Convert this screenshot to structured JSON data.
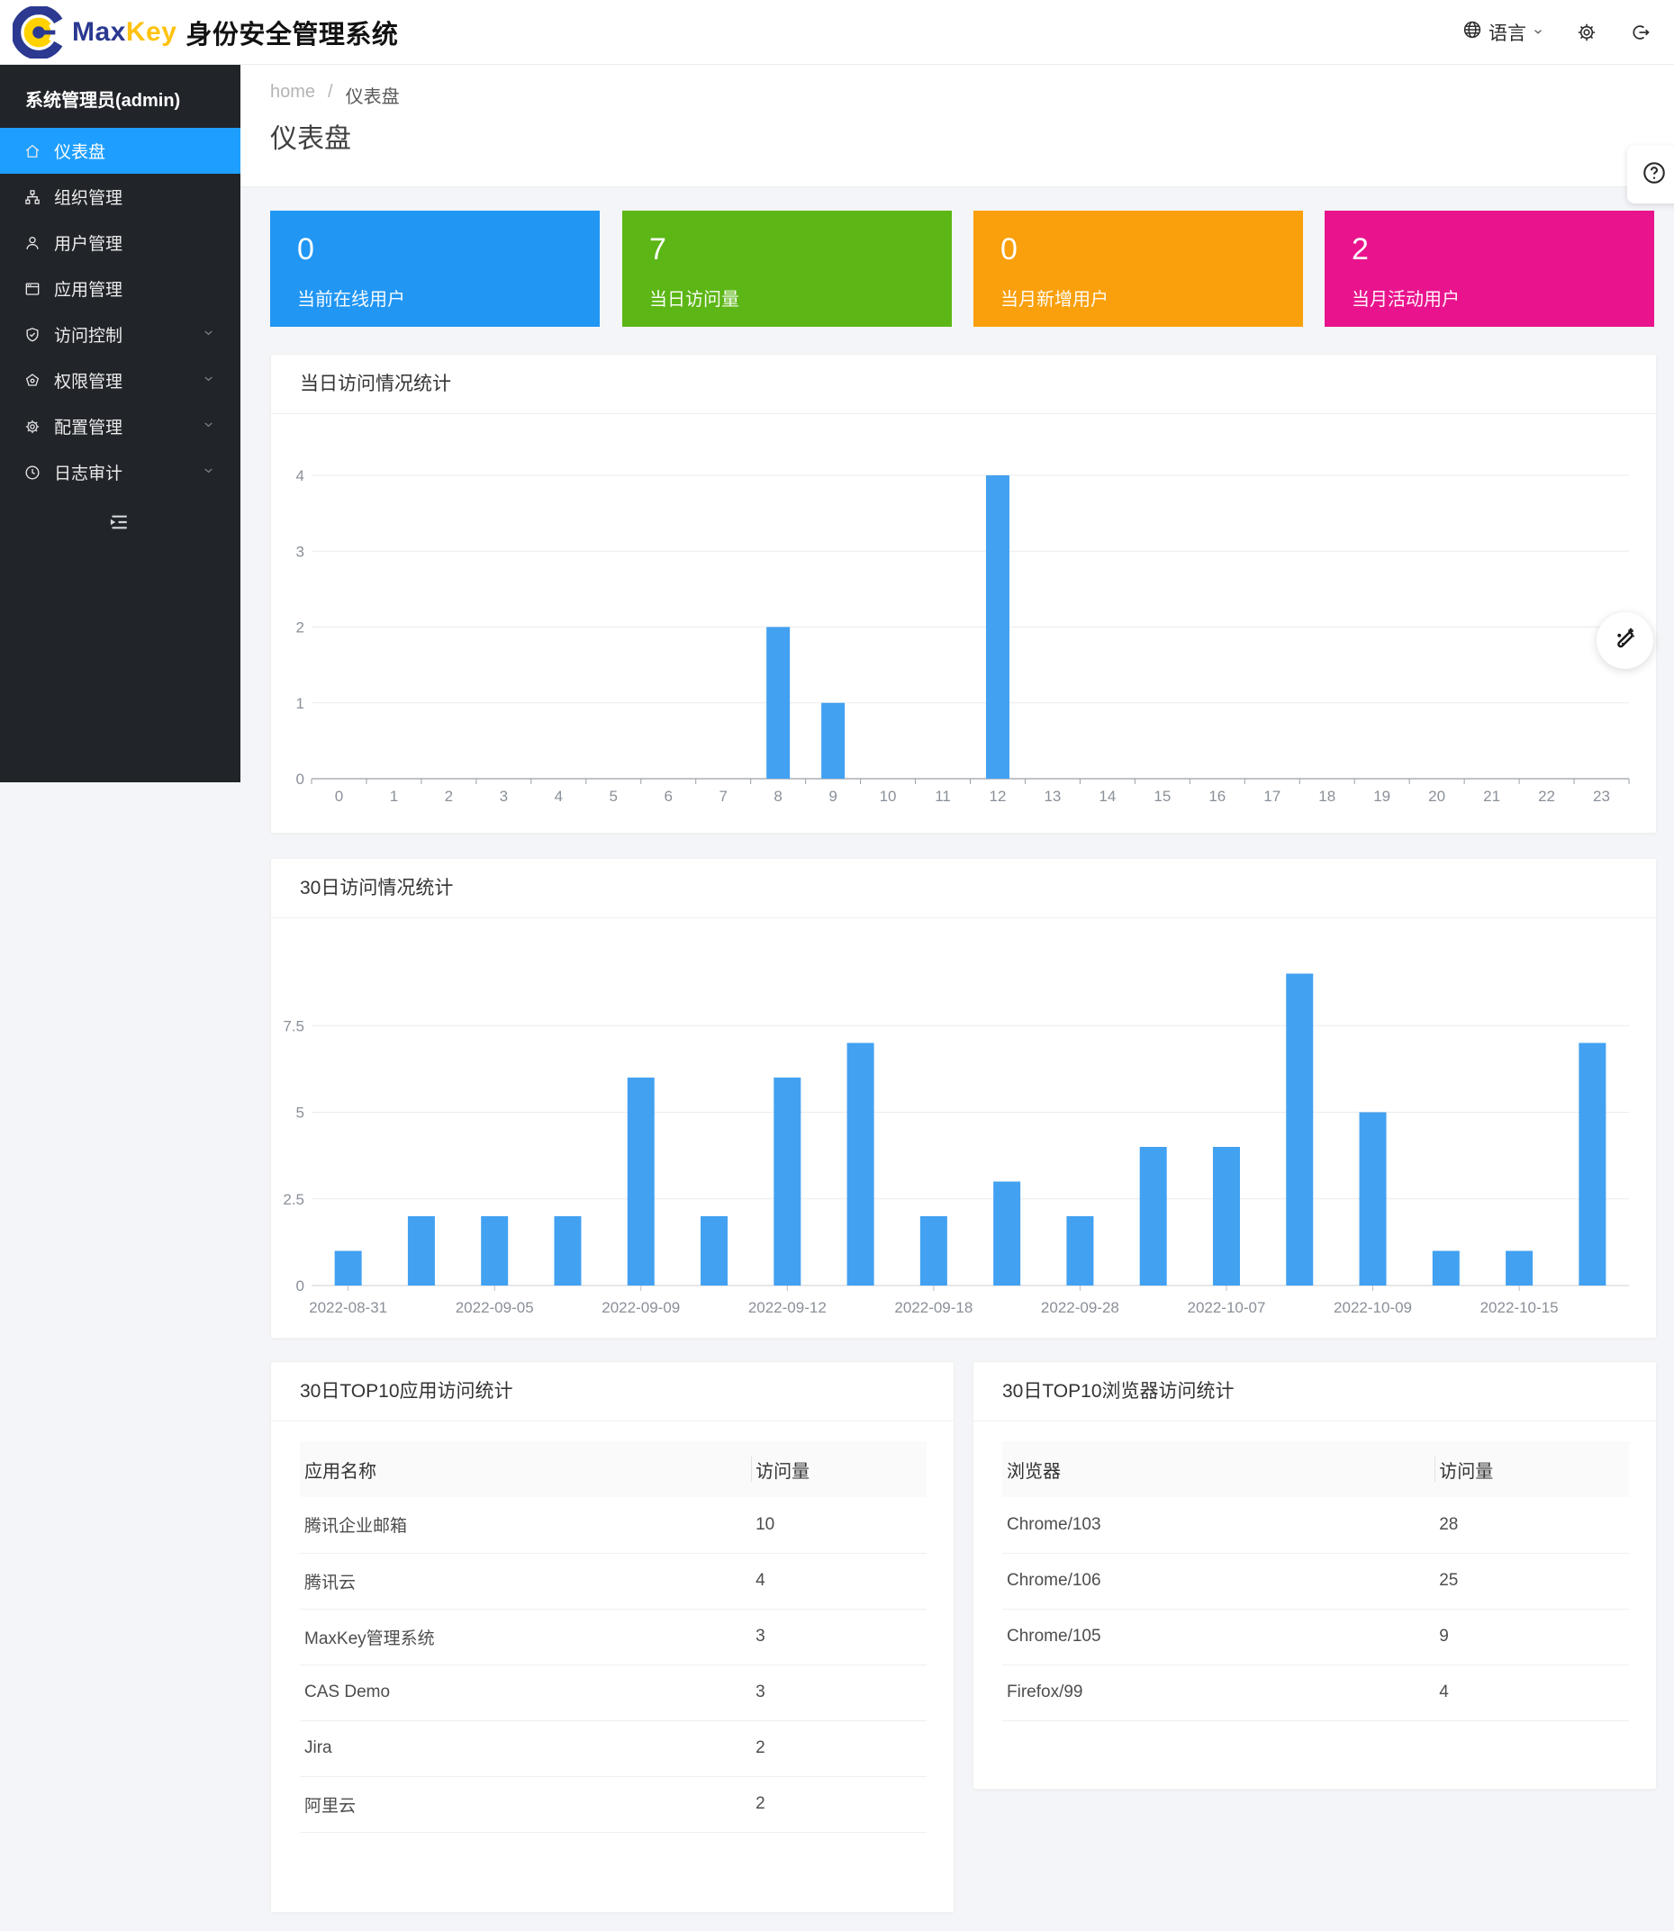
{
  "header": {
    "brand_max": "Max",
    "brand_key": "Key",
    "brand_suffix": "身份安全管理系统",
    "language_label": "语言"
  },
  "sidebar": {
    "admin_label": "系统管理员(admin)",
    "active_color": "#1E9FFF",
    "items": [
      {
        "name": "dashboard",
        "label": "仪表盘",
        "icon": "home-icon",
        "active": true,
        "expandable": false
      },
      {
        "name": "organization",
        "label": "组织管理",
        "icon": "org-icon",
        "active": false,
        "expandable": false
      },
      {
        "name": "users",
        "label": "用户管理",
        "icon": "user-icon",
        "active": false,
        "expandable": false
      },
      {
        "name": "apps",
        "label": "应用管理",
        "icon": "app-icon",
        "active": false,
        "expandable": false
      },
      {
        "name": "access-control",
        "label": "访问控制",
        "icon": "shield-check-icon",
        "active": false,
        "expandable": true
      },
      {
        "name": "permissions",
        "label": "权限管理",
        "icon": "pentagon-icon",
        "active": false,
        "expandable": true
      },
      {
        "name": "config",
        "label": "配置管理",
        "icon": "gear-icon",
        "active": false,
        "expandable": true
      },
      {
        "name": "audit-log",
        "label": "日志审计",
        "icon": "clock-icon",
        "active": false,
        "expandable": true
      }
    ]
  },
  "breadcrumb": {
    "home": "home",
    "separator": "/",
    "current": "仪表盘"
  },
  "page_title": "仪表盘",
  "stat_cards": [
    {
      "name": "online-users",
      "value": "0",
      "label": "当前在线用户",
      "color": "#2196F3"
    },
    {
      "name": "today-visits",
      "value": "7",
      "label": "当日访问量",
      "color": "#5CB615"
    },
    {
      "name": "month-new-users",
      "value": "0",
      "label": "当月新增用户",
      "color": "#F9A00C"
    },
    {
      "name": "month-active-users",
      "value": "2",
      "label": "当月活动用户",
      "color": "#E9148D"
    }
  ],
  "chart_data": [
    {
      "type": "bar",
      "title": "当日访问情况统计",
      "categories": [
        "0",
        "1",
        "2",
        "3",
        "4",
        "5",
        "6",
        "7",
        "8",
        "9",
        "10",
        "11",
        "12",
        "13",
        "14",
        "15",
        "16",
        "17",
        "18",
        "19",
        "20",
        "21",
        "22",
        "23"
      ],
      "values": [
        0,
        0,
        0,
        0,
        0,
        0,
        0,
        0,
        2,
        1,
        0,
        0,
        4,
        0,
        0,
        0,
        0,
        0,
        0,
        0,
        0,
        0,
        0,
        0
      ],
      "xlabel": "",
      "ylabel": "",
      "ylim": [
        0,
        4
      ],
      "yticks": [
        0,
        1,
        2,
        3,
        4
      ],
      "grid": true,
      "legend": false,
      "bar_color": "#42A1F1"
    },
    {
      "type": "bar",
      "title": "30日访问情况统计",
      "categories": [
        "2022-08-31",
        "",
        "2022-09-05",
        "",
        "2022-09-09",
        "",
        "2022-09-12",
        "",
        "2022-09-18",
        "",
        "2022-09-28",
        "",
        "2022-10-07",
        "",
        "2022-10-09",
        "",
        "2022-10-15",
        ""
      ],
      "x_labels_shown": [
        "2022-08-31",
        "2022-09-05",
        "2022-09-09",
        "2022-09-12",
        "2022-09-18",
        "2022-09-28",
        "2022-10-07",
        "2022-10-09",
        "2022-10-15"
      ],
      "values": [
        1,
        2,
        2,
        2,
        6,
        2,
        6,
        7,
        2,
        3,
        2,
        4,
        4,
        9,
        5,
        1,
        1,
        7
      ],
      "xlabel": "",
      "ylabel": "",
      "ylim": [
        0,
        9
      ],
      "yticks": [
        0,
        2.5,
        5,
        7.5
      ],
      "grid": true,
      "legend": false,
      "bar_color": "#42A1F1"
    }
  ],
  "tables": [
    {
      "title": "30日TOP10应用访问统计",
      "columns": [
        "应用名称",
        "访问量"
      ],
      "rows": [
        [
          "腾讯企业邮箱",
          "10"
        ],
        [
          "腾讯云",
          "4"
        ],
        [
          "MaxKey管理系统",
          "3"
        ],
        [
          "CAS Demo",
          "3"
        ],
        [
          "Jira",
          "2"
        ],
        [
          "阿里云",
          "2"
        ]
      ]
    },
    {
      "title": "30日TOP10浏览器访问统计",
      "columns": [
        "浏览器",
        "访问量"
      ],
      "rows": [
        [
          "Chrome/103",
          "28"
        ],
        [
          "Chrome/106",
          "25"
        ],
        [
          "Chrome/105",
          "9"
        ],
        [
          "Firefox/99",
          "4"
        ]
      ]
    }
  ]
}
